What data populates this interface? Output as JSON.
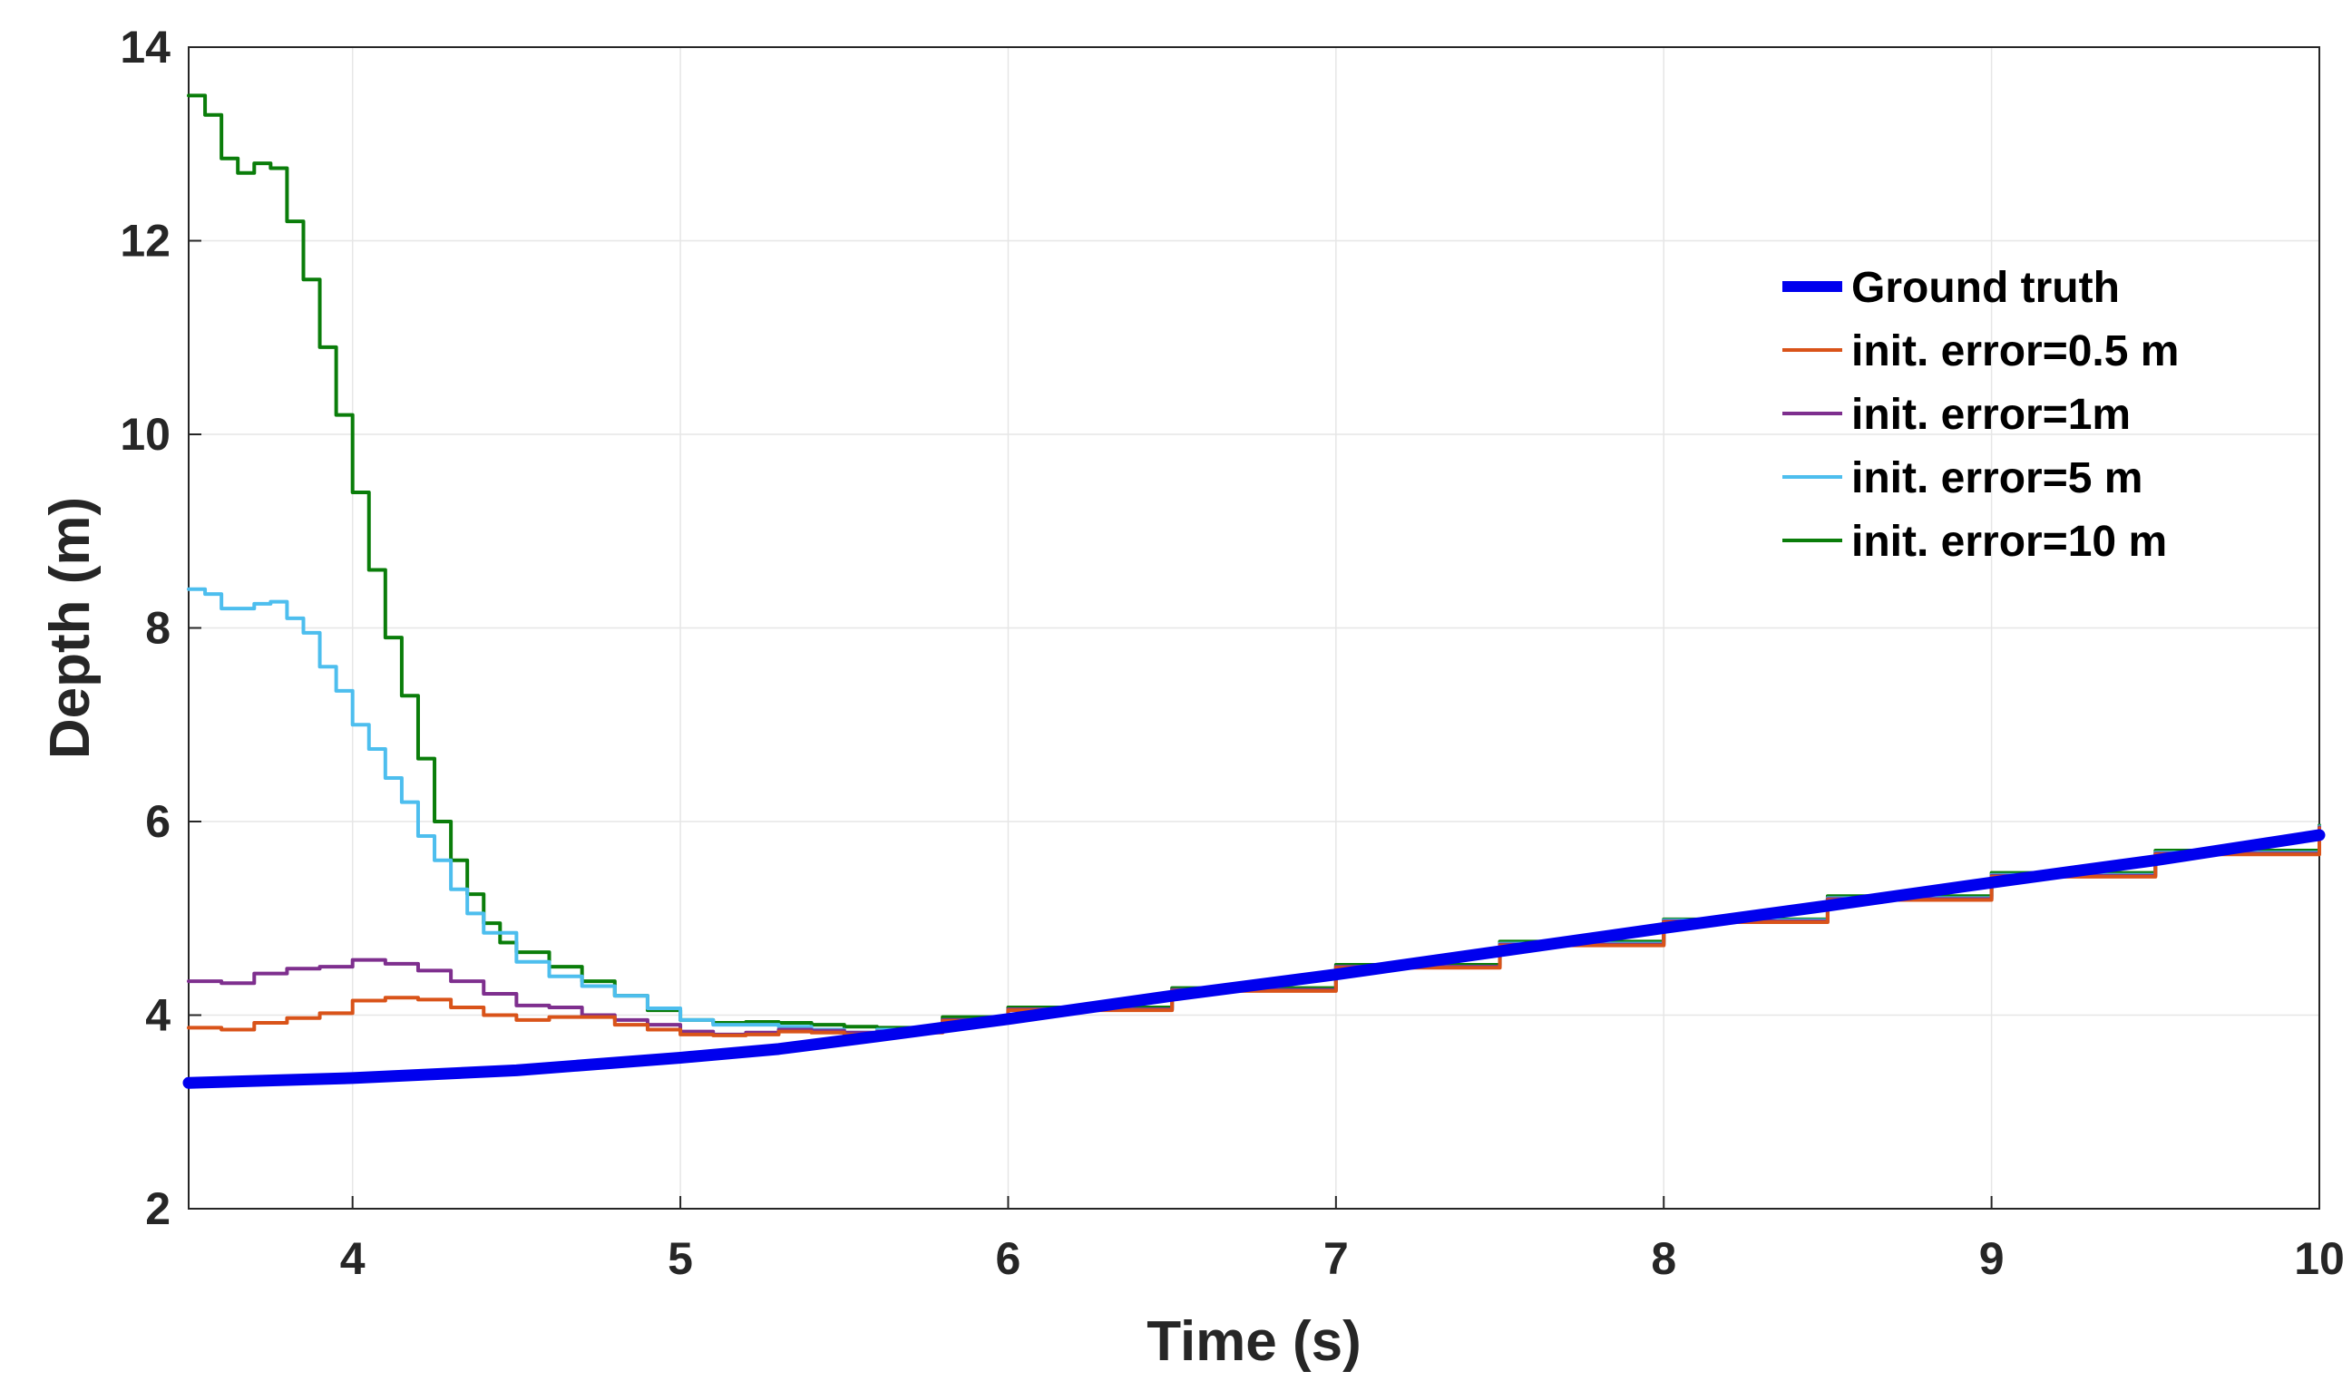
{
  "chart_data": {
    "type": "line",
    "title": "",
    "xlabel": "Time (s)",
    "ylabel": "Depth (m)",
    "xlim": [
      3.5,
      10
    ],
    "ylim": [
      2,
      14
    ],
    "xticks": [
      4,
      5,
      6,
      7,
      8,
      9,
      10
    ],
    "yticks": [
      2,
      4,
      6,
      8,
      10,
      12,
      14
    ],
    "grid": true,
    "legend_position": "top-right",
    "series": [
      {
        "name": "Ground truth",
        "color": "#0000ee",
        "width": "thick",
        "x": [
          3.5,
          4.0,
          4.5,
          5.0,
          5.3,
          5.6,
          6.0,
          6.5,
          7.0,
          7.5,
          8.0,
          8.5,
          9.0,
          9.5,
          10.0
        ],
        "y": [
          3.3,
          3.35,
          3.43,
          3.56,
          3.65,
          3.78,
          3.96,
          4.2,
          4.42,
          4.66,
          4.9,
          5.13,
          5.37,
          5.6,
          5.86
        ]
      },
      {
        "name": "init. error=0.5 m",
        "color": "#d95319",
        "width": "thin",
        "x": [
          3.5,
          3.6,
          3.7,
          3.8,
          3.9,
          4.0,
          4.1,
          4.2,
          4.3,
          4.4,
          4.5,
          4.6,
          4.7,
          4.8,
          4.9,
          5.0,
          5.1,
          5.2,
          5.3,
          5.4,
          5.5,
          5.6,
          5.8,
          6.0,
          6.5,
          7.0,
          7.5,
          8.0,
          8.5,
          9.0,
          9.5,
          10.0
        ],
        "y": [
          3.87,
          3.85,
          3.92,
          3.97,
          4.02,
          4.15,
          4.18,
          4.16,
          4.08,
          4.0,
          3.95,
          3.98,
          3.98,
          3.9,
          3.85,
          3.8,
          3.79,
          3.8,
          3.83,
          3.82,
          3.8,
          3.82,
          3.94,
          4.05,
          4.25,
          4.49,
          4.72,
          4.96,
          5.19,
          5.43,
          5.66,
          5.93
        ]
      },
      {
        "name": "init. error=1m",
        "color": "#7e2f8e",
        "width": "thin",
        "x": [
          3.5,
          3.6,
          3.7,
          3.8,
          3.9,
          4.0,
          4.05,
          4.1,
          4.2,
          4.3,
          4.4,
          4.5,
          4.6,
          4.7,
          4.8,
          4.9,
          5.0,
          5.1,
          5.2,
          5.3,
          5.4,
          5.5,
          5.6,
          5.8,
          6.0,
          6.5,
          7.0,
          7.5,
          8.0,
          8.5,
          9.0,
          9.5,
          10.0
        ],
        "y": [
          4.35,
          4.33,
          4.43,
          4.48,
          4.5,
          4.57,
          4.57,
          4.53,
          4.46,
          4.35,
          4.22,
          4.1,
          4.08,
          4.0,
          3.95,
          3.9,
          3.83,
          3.8,
          3.82,
          3.85,
          3.84,
          3.82,
          3.83,
          3.95,
          4.06,
          4.26,
          4.5,
          4.73,
          4.97,
          5.2,
          5.44,
          5.67,
          5.94
        ]
      },
      {
        "name": "init. error=5 m",
        "color": "#4dbeee",
        "width": "thin",
        "x": [
          3.5,
          3.55,
          3.6,
          3.7,
          3.75,
          3.8,
          3.85,
          3.9,
          3.95,
          4.0,
          4.05,
          4.1,
          4.15,
          4.2,
          4.25,
          4.3,
          4.35,
          4.4,
          4.5,
          4.6,
          4.7,
          4.8,
          4.9,
          5.0,
          5.1,
          5.2,
          5.3,
          5.4,
          5.5,
          5.6,
          5.8,
          6.0,
          6.5,
          7.0,
          7.5,
          8.0,
          8.5,
          9.0,
          9.5,
          10.0
        ],
        "y": [
          8.4,
          8.35,
          8.2,
          8.25,
          8.27,
          8.1,
          7.95,
          7.6,
          7.35,
          7.0,
          6.75,
          6.45,
          6.2,
          5.85,
          5.6,
          5.3,
          5.05,
          4.85,
          4.55,
          4.4,
          4.3,
          4.2,
          4.07,
          3.95,
          3.9,
          3.9,
          3.88,
          3.85,
          3.82,
          3.85,
          3.95,
          4.06,
          4.26,
          4.5,
          4.74,
          4.98,
          5.21,
          5.45,
          5.68,
          5.95
        ]
      },
      {
        "name": "init. error=10 m",
        "color": "#0a7d0a",
        "width": "thin",
        "x": [
          3.5,
          3.55,
          3.6,
          3.65,
          3.7,
          3.75,
          3.8,
          3.85,
          3.9,
          3.95,
          4.0,
          4.05,
          4.1,
          4.15,
          4.2,
          4.25,
          4.3,
          4.35,
          4.4,
          4.45,
          4.5,
          4.6,
          4.7,
          4.8,
          4.9,
          5.0,
          5.1,
          5.2,
          5.3,
          5.4,
          5.5,
          5.6,
          5.8,
          6.0,
          6.5,
          7.0,
          7.5,
          8.0,
          8.5,
          9.0,
          9.5,
          10.0
        ],
        "y": [
          13.5,
          13.3,
          12.85,
          12.7,
          12.8,
          12.75,
          12.2,
          11.6,
          10.9,
          10.2,
          9.4,
          8.6,
          7.9,
          7.3,
          6.65,
          6.0,
          5.6,
          5.25,
          4.95,
          4.75,
          4.65,
          4.5,
          4.35,
          4.2,
          4.05,
          3.95,
          3.92,
          3.93,
          3.92,
          3.9,
          3.88,
          3.87,
          3.98,
          4.08,
          4.28,
          4.52,
          4.76,
          4.99,
          5.23,
          5.47,
          5.7,
          5.96
        ]
      }
    ]
  }
}
